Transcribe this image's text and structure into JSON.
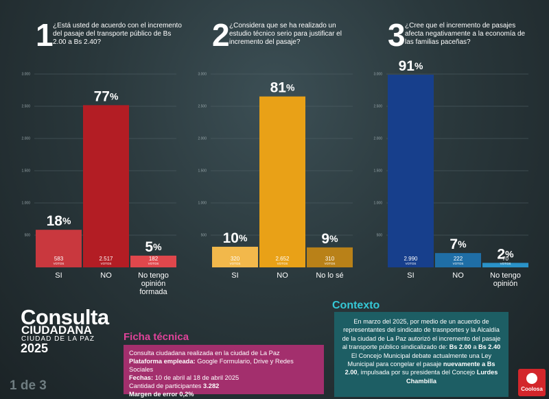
{
  "chart_data": [
    {
      "type": "bar",
      "number": 1,
      "title": "¿Está usted de acuerdo con el incremento del pasaje del transporte público de Bs 2.00 a Bs 2.40?",
      "categories": [
        "SI",
        "NO",
        "No tengo opinión formada"
      ],
      "values": [
        583,
        2517,
        182
      ],
      "value_labels": [
        "583",
        "2.517",
        "182"
      ],
      "percent_labels": [
        "18%",
        "77%",
        "5%"
      ],
      "colors": [
        "#c9383e",
        "#b31d24",
        "#e0474c"
      ],
      "ylim": [
        0,
        3000
      ],
      "yticks": [
        500,
        {
          "value": 1000,
          "label": "1.000"
        },
        {
          "value": 1500,
          "label": "1.500"
        },
        {
          "value": 2000,
          "label": "2.000"
        },
        {
          "value": 2500,
          "label": "2.500"
        },
        {
          "value": 3000,
          "label": "3.000"
        }
      ],
      "grid": true
    },
    {
      "type": "bar",
      "number": 2,
      "title": "¿Considera que se ha realizado un estudio técnico serio para justificar el incremento del pasaje?",
      "categories": [
        "SI",
        "NO",
        "No lo sé"
      ],
      "values": [
        320,
        2652,
        310
      ],
      "value_labels": [
        "320",
        "2.652",
        "310"
      ],
      "percent_labels": [
        "10%",
        "81%",
        "9%"
      ],
      "colors": [
        "#f2b84b",
        "#e9a117",
        "#b98118"
      ],
      "ylim": [
        0,
        3000
      ],
      "yticks": [
        500,
        {
          "value": 1000,
          "label": "1.000"
        },
        {
          "value": 1500,
          "label": "1.500"
        },
        {
          "value": 2000,
          "label": "2.000"
        },
        {
          "value": 2500,
          "label": "2.500"
        },
        {
          "value": 3000,
          "label": "3.000"
        }
      ],
      "grid": true
    },
    {
      "type": "bar",
      "number": 3,
      "title": "¿Cree que el incremento de pasajes afecta negativamente a la economía de las familias paceñas?",
      "categories": [
        "SI",
        "NO",
        "No tengo opinión"
      ],
      "values": [
        2990,
        222,
        70
      ],
      "value_labels": [
        "2.990",
        "222",
        "70"
      ],
      "percent_labels": [
        "91%",
        "7%",
        "2%"
      ],
      "colors": [
        "#173f8c",
        "#1f6ea6",
        "#2a92c8"
      ],
      "ylim": [
        0,
        3000
      ],
      "yticks": [
        500,
        {
          "value": 1000,
          "label": "1.000"
        },
        {
          "value": 1500,
          "label": "1.500"
        },
        {
          "value": 2000,
          "label": "2.000"
        },
        {
          "value": 2500,
          "label": "2.500"
        },
        {
          "value": 3000,
          "label": "3.000"
        }
      ],
      "grid": true
    }
  ],
  "votes_label": "VOTOS",
  "header": {
    "title": "Consulta",
    "subtitle": "CIUDADANA",
    "place": "CIUDAD DE LA PAZ",
    "year": "2025"
  },
  "page": "1 de 3",
  "ficha": {
    "title": "Ficha técnica",
    "lines": [
      [
        {
          "text": "Consulta ciudadana realizada en la ciudad de La Paz"
        }
      ],
      [
        {
          "text": "Plataforma empleada:",
          "bold": true
        },
        {
          "text": " Google Formulario, Drive y Redes Sociales"
        }
      ],
      [
        {
          "text": "Fechas:",
          "bold": true
        },
        {
          "text": " 10 de abril al 18 de abril 2025"
        }
      ],
      [
        {
          "text": "Cantidad de participantes "
        },
        {
          "text": "3.282",
          "bold": true
        }
      ],
      [
        {
          "text": "Margen de error 0,2%",
          "bold": true
        }
      ]
    ]
  },
  "contexto": {
    "title": "Contexto",
    "paragraphs": [
      [
        {
          "text": "En marzo del 2025, por medio de un acuerdo de representantes del sindicato de trasnportes y la Alcaldía de la ciudad de La Paz autorizó el incremento del pasaje al transporte público sindicalizado de: "
        },
        {
          "text": "Bs 2.00",
          "bold": true
        },
        {
          "text": " a "
        },
        {
          "text": "Bs 2.40",
          "bold": true
        }
      ],
      [
        {
          "text": "El Concejo Municipal debate actualmente una Ley Municipal para congelar el pasaje "
        },
        {
          "text": "nuevamente a Bs 2.00",
          "bold": true
        },
        {
          "text": ", impulsada por su presidenta del Concejo "
        },
        {
          "text": "Lurdes Chambilla",
          "bold": true
        }
      ]
    ]
  },
  "logo": {
    "name": "Coolosa"
  }
}
